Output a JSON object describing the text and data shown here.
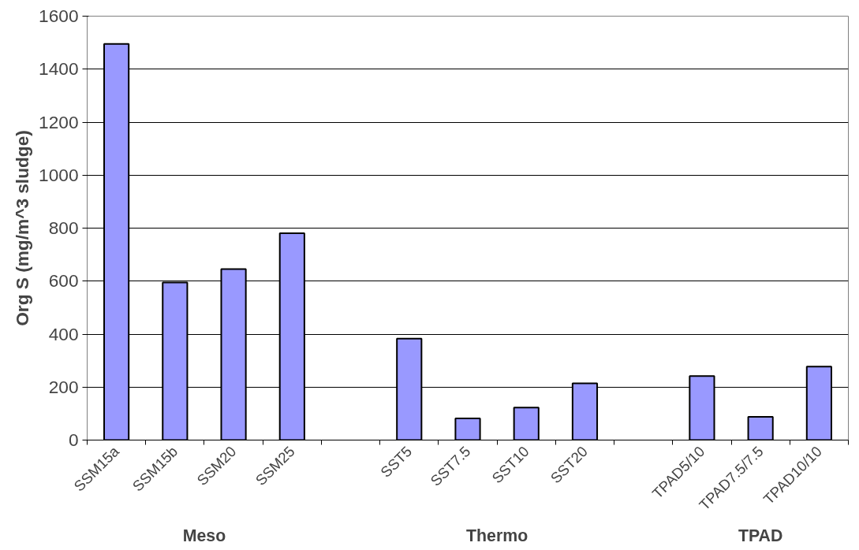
{
  "chart_data": {
    "type": "bar",
    "ylabel": "Org S (mg/m^3 sludge)",
    "categories": [
      "SSM15a",
      "SSM15b",
      "SSM20",
      "SSM25",
      null,
      "SST5",
      "SST7.5",
      "SST10",
      "SST20",
      null,
      "TPAD5/10",
      "TPAD7.5/7.5",
      "TPAD10/10"
    ],
    "values": [
      1495,
      595,
      645,
      781,
      null,
      383,
      82,
      123,
      214,
      null,
      242,
      88,
      277
    ],
    "color": "#9999ff",
    "ylim": [
      0,
      1600
    ],
    "yticks": [
      0,
      200,
      400,
      600,
      800,
      1000,
      1200,
      1400,
      1600
    ],
    "grid": "y",
    "annotations": [
      "Meso",
      "Thermo",
      "TPAD"
    ]
  }
}
